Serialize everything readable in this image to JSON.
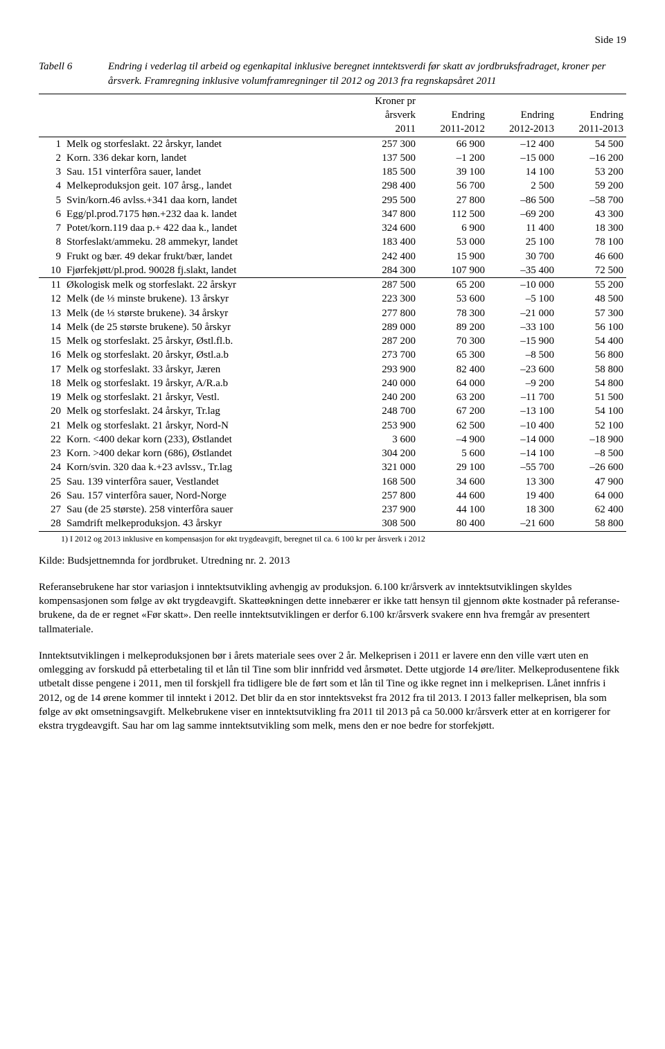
{
  "page_label": "Side 19",
  "tabell_label": "Tabell 6",
  "tabell_title": "Endring i vederlag til arbeid og egenkapital inklusive beregnet inntektsverdi før skatt av jordbruksfradraget, kroner per årsverk. Framregning inklusive volumframregninger til 2012 og 2013 fra regnskapsåret 2011",
  "table": {
    "header": {
      "h1_c3": "Kroner pr",
      "h2_c3": "årsverk",
      "h2_c4": "Endring",
      "h2_c5": "Endring",
      "h2_c6": "Endring",
      "h3_c3": "2011",
      "h3_c4": "2011-2012",
      "h3_c5": "2012-2013",
      "h3_c6": "2011-2013"
    },
    "rows": [
      {
        "n": "1",
        "d": "Melk og storfeslakt. 22 årskyr, landet",
        "a": "257 300",
        "b": "66 900",
        "c": "–12 400",
        "e": "54 500"
      },
      {
        "n": "2",
        "d": "Korn. 336 dekar korn, landet",
        "a": "137 500",
        "b": "–1 200",
        "c": "–15 000",
        "e": "–16 200"
      },
      {
        "n": "3",
        "d": "Sau. 151 vinterfôra sauer, landet",
        "a": "185 500",
        "b": "39 100",
        "c": "14 100",
        "e": "53 200"
      },
      {
        "n": "4",
        "d": "Melkeproduksjon geit. 107 årsg., landet",
        "a": "298 400",
        "b": "56 700",
        "c": "2 500",
        "e": "59 200"
      },
      {
        "n": "5",
        "d": "Svin/korn.46 avlss.+341 daa korn, landet",
        "a": "295 500",
        "b": "27 800",
        "c": "–86 500",
        "e": "–58 700"
      },
      {
        "n": "6",
        "d": "Egg/pl.prod.7175 høn.+232 daa k. landet",
        "a": "347 800",
        "b": "112 500",
        "c": "–69 200",
        "e": "43 300"
      },
      {
        "n": "7",
        "d": "Potet/korn.119 daa p.+ 422 daa k., landet",
        "a": "324 600",
        "b": "6 900",
        "c": "11 400",
        "e": "18 300"
      },
      {
        "n": "8",
        "d": "Storfeslakt/ammeku. 28 ammekyr, landet",
        "a": "183 400",
        "b": "53 000",
        "c": "25 100",
        "e": "78 100"
      },
      {
        "n": "9",
        "d": "Frukt og bær. 49 dekar frukt/bær, landet",
        "a": "242 400",
        "b": "15 900",
        "c": "30 700",
        "e": "46 600"
      },
      {
        "n": "10",
        "d": "Fjørfekjøtt/pl.prod. 90028 fj.slakt, landet",
        "a": "284 300",
        "b": "107 900",
        "c": "–35 400",
        "e": "72 500"
      },
      {
        "n": "11",
        "d": "Økologisk melk og storfeslakt. 22 årskyr",
        "a": "287 500",
        "b": "65 200",
        "c": "–10 000",
        "e": "55 200",
        "section": true
      },
      {
        "n": "12",
        "d": "Melk (de ⅓ minste brukene). 13 årskyr",
        "a": "223 300",
        "b": "53 600",
        "c": "–5 100",
        "e": "48 500"
      },
      {
        "n": "13",
        "d": "Melk (de ⅓ største brukene). 34 årskyr",
        "a": "277 800",
        "b": "78 300",
        "c": "–21 000",
        "e": "57 300"
      },
      {
        "n": "14",
        "d": "Melk (de 25 største brukene). 50 årskyr",
        "a": "289 000",
        "b": "89 200",
        "c": "–33 100",
        "e": "56 100"
      },
      {
        "n": "15",
        "d": "Melk og storfeslakt. 25 årskyr, Østl.fl.b.",
        "a": "287 200",
        "b": "70 300",
        "c": "–15 900",
        "e": "54 400"
      },
      {
        "n": "16",
        "d": "Melk og storfeslakt. 20 årskyr, Østl.a.b",
        "a": "273 700",
        "b": "65 300",
        "c": "–8 500",
        "e": "56 800"
      },
      {
        "n": "17",
        "d": "Melk og storfeslakt. 33 årskyr, Jæren",
        "a": "293 900",
        "b": "82 400",
        "c": "–23 600",
        "e": "58 800"
      },
      {
        "n": "18",
        "d": "Melk og storfeslakt. 19 årskyr, A/R.a.b",
        "a": "240 000",
        "b": "64 000",
        "c": "–9 200",
        "e": "54 800"
      },
      {
        "n": "19",
        "d": "Melk og storfeslakt. 21 årskyr, Vestl.",
        "a": "240 200",
        "b": "63 200",
        "c": "–11 700",
        "e": "51 500"
      },
      {
        "n": "20",
        "d": "Melk og storfeslakt. 24 årskyr, Tr.lag",
        "a": "248 700",
        "b": "67 200",
        "c": "–13 100",
        "e": "54 100"
      },
      {
        "n": "21",
        "d": "Melk og storfeslakt. 21 årskyr, Nord-N",
        "a": "253 900",
        "b": "62 500",
        "c": "–10 400",
        "e": "52 100"
      },
      {
        "n": "22",
        "d": "Korn. <400 dekar korn (233), Østlandet",
        "a": "3 600",
        "b": "–4 900",
        "c": "–14 000",
        "e": "–18 900"
      },
      {
        "n": "23",
        "d": "Korn. >400 dekar korn (686), Østlandet",
        "a": "304 200",
        "b": "5 600",
        "c": "–14 100",
        "e": "–8 500"
      },
      {
        "n": "24",
        "d": "Korn/svin. 320 daa k.+23 avlssv., Tr.lag",
        "a": "321 000",
        "b": "29 100",
        "c": "–55 700",
        "e": "–26 600"
      },
      {
        "n": "25",
        "d": "Sau. 139 vinterfôra sauer, Vestlandet",
        "a": "168 500",
        "b": "34 600",
        "c": "13 300",
        "e": "47 900"
      },
      {
        "n": "26",
        "d": "Sau. 157 vinterfôra sauer, Nord-Norge",
        "a": "257 800",
        "b": "44 600",
        "c": "19 400",
        "e": "64 000"
      },
      {
        "n": "27",
        "d": "Sau (de 25 største). 258 vinterfôra sauer",
        "a": "237 900",
        "b": "44 100",
        "c": "18 300",
        "e": "62 400"
      },
      {
        "n": "28",
        "d": "Samdrift melkeproduksjon. 43 årskyr",
        "a": "308 500",
        "b": "80 400",
        "c": "–21 600",
        "e": "58 800"
      }
    ]
  },
  "footnote": "1)   I 2012 og 2013 inklusive en kompensasjon for økt trygdeavgift, beregnet til ca. 6 100 kr per årsverk i 2012",
  "kilde": "Kilde: Budsjettnemnda for jordbruket. Utredning nr. 2. 2013",
  "para1": "Referansebrukene har stor variasjon i inntektsutvikling avhengig av produksjon. 6.100 kr/årsverk av inntektsutviklingen skyldes kompensasjonen som følge av økt trygdeavgift. Skatteøkningen dette innebærer er ikke tatt hensyn til gjennom økte kostnader på referanse­brukene, da de er regnet «Før skatt». Den reelle inntektsutviklingen er derfor 6.100 kr/årsverk svakere enn hva fremgår av presentert tallmateriale.",
  "para2": "Inntektsutviklingen i melkeproduksjonen bør i årets materiale sees over 2 år. Melkeprisen i 2011 er lavere enn den ville vært uten en omlegging av forskudd på etterbetaling til et lån til Tine som blir innfridd ved årsmøtet. Dette utgjorde 14 øre/liter. Melkeprodusentene fikk utbetalt disse pengene i 2011, men til forskjell fra tidligere ble de ført som et lån til Tine og ikke regnet inn i melkeprisen. Lånet innfris i 2012, og de 14 ørene kommer til inntekt i 2012. Det blir da en stor inntektsvekst fra 2012 fra til 2013. I 2013 faller melkeprisen, bla som følge av økt omsetningsavgift. Melkebrukene viser en inntektsutvikling fra 2011 til 2013 på ca 50.000 kr/årsverk etter at en korrigerer for ekstra trygdeavgift. Sau har om lag samme inntektsutvikling som melk, mens den er noe bedre for storfekjøtt."
}
